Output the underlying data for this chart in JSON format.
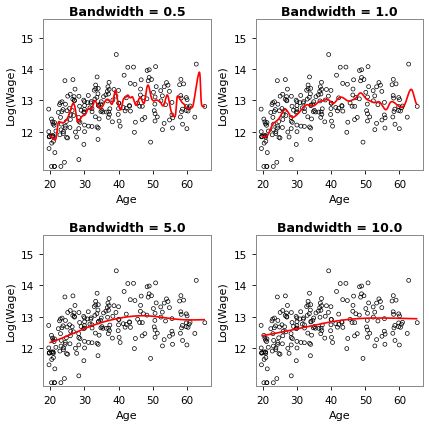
{
  "bandwidths": [
    0.5,
    1.0,
    5.0,
    10.0
  ],
  "titles": [
    "Bandwidth = 0.5",
    "Bandwidth = 1.0",
    "Bandwidth = 5.0",
    "Bandwidth = 10.0"
  ],
  "xlabel": "Age",
  "ylabel": "Log(Wage)",
  "xlim": [
    18,
    67
  ],
  "ylim": [
    10.8,
    15.6
  ],
  "xticks": [
    20,
    30,
    40,
    50,
    60
  ],
  "yticks": [
    12,
    13,
    14,
    15
  ],
  "scatter_color": "none",
  "scatter_edgecolor": "black",
  "scatter_size": 8,
  "line_color": "red",
  "line_width": 1.2,
  "title_fontsize": 9,
  "label_fontsize": 8,
  "tick_fontsize": 7.5,
  "background_color": "white",
  "seed": 7
}
